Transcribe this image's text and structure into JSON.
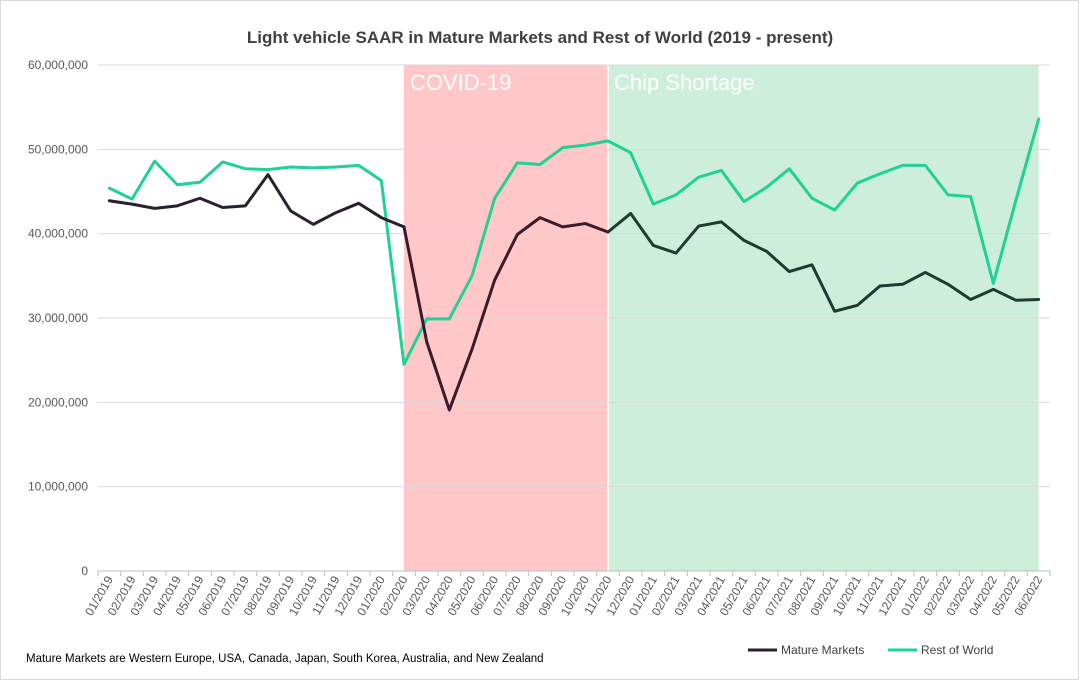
{
  "chart_data": {
    "type": "line",
    "title": "Light vehicle SAAR in Mature Markets and Rest of World (2019 - present)",
    "xlabel": "",
    "ylabel": "",
    "ylim": [
      0,
      60000000
    ],
    "yticks": [
      0,
      10000000,
      20000000,
      30000000,
      40000000,
      50000000,
      60000000
    ],
    "ytick_labels": [
      "0",
      "10,000,000",
      "20,000,000",
      "30,000,000",
      "40,000,000",
      "50,000,000",
      "60,000,000"
    ],
    "categories": [
      "01/2019",
      "02/2019",
      "03/2019",
      "04/2019",
      "05/2019",
      "06/2019",
      "07/2019",
      "08/2019",
      "09/2019",
      "10/2019",
      "11/2019",
      "12/2019",
      "01/2020",
      "02/2020",
      "03/2020",
      "04/2020",
      "05/2020",
      "06/2020",
      "07/2020",
      "08/2020",
      "09/2020",
      "10/2020",
      "11/2020",
      "12/2020",
      "01/2021",
      "02/2021",
      "03/2021",
      "04/2021",
      "05/2021",
      "06/2021",
      "07/2021",
      "08/2021",
      "09/2021",
      "10/2021",
      "11/2021",
      "12/2021",
      "01/2022",
      "02/2022",
      "03/2022",
      "04/2022",
      "05/2022",
      "06/2022"
    ],
    "series": [
      {
        "name": "Mature Markets",
        "color_pre": "#2b1f2f",
        "color_covid": "#3b1a2b",
        "color_post": "#1f3a33",
        "values": [
          43900000,
          43500000,
          43000000,
          43300000,
          44200000,
          43100000,
          43300000,
          47000000,
          42700000,
          41100000,
          42500000,
          43600000,
          41900000,
          40800000,
          27200000,
          19100000,
          26300000,
          34500000,
          39900000,
          41900000,
          40800000,
          41200000,
          40200000,
          42400000,
          38600000,
          37700000,
          40900000,
          41400000,
          39200000,
          37900000,
          35500000,
          36300000,
          30800000,
          31500000,
          33800000,
          34000000,
          35400000,
          34000000,
          32200000,
          33400000,
          32100000,
          32200000
        ]
      },
      {
        "name": "Rest of World",
        "color": "#1fd195",
        "values": [
          45400000,
          44100000,
          48600000,
          45800000,
          46100000,
          48500000,
          47700000,
          47600000,
          47900000,
          47800000,
          47900000,
          48100000,
          46300000,
          24500000,
          29900000,
          29900000,
          35000000,
          44200000,
          48400000,
          48200000,
          50200000,
          50500000,
          51000000,
          49600000,
          43500000,
          44600000,
          46700000,
          47500000,
          43800000,
          45500000,
          47700000,
          44200000,
          42800000,
          46000000,
          47100000,
          48100000,
          48100000,
          44600000,
          44400000,
          34100000,
          44000000,
          53600000
        ]
      }
    ],
    "bands": [
      {
        "label": "COVID-19",
        "start": "02/2020",
        "end": "11/2020",
        "color": "#ffc7c7"
      },
      {
        "label": "Chip Shortage",
        "start": "11/2020",
        "end": "06/2022",
        "color": "#cdeedb"
      }
    ],
    "legend": [
      "Mature Markets",
      "Rest of World"
    ],
    "legend_position": "bottom-right",
    "grid": true,
    "footnote": "Mature Markets are Western Europe, USA, Canada, Japan, South Korea, Australia, and New Zealand"
  }
}
